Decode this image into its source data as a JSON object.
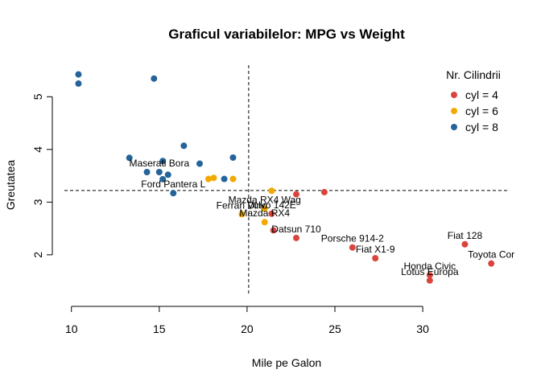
{
  "chart_data": {
    "type": "scatter",
    "title": "Graficul variabilelor: MPG vs Weight",
    "xlabel": "Mile pe Galon",
    "ylabel": "Greutatea",
    "xlim": [
      9.6,
      34.9
    ],
    "ylim": [
      1.25,
      5.6
    ],
    "xticks": [
      10,
      15,
      20,
      25,
      30
    ],
    "yticks": [
      2,
      3,
      4,
      5
    ],
    "grid": false,
    "legend": {
      "title": "Nr. Cilindrii",
      "placement": "top-right",
      "entries": [
        {
          "label": "cyl = 4",
          "color": "#D9453D"
        },
        {
          "label": "cyl = 6",
          "color": "#F2A900"
        },
        {
          "label": "cyl = 8",
          "color": "#24649A"
        }
      ]
    },
    "reference_lines": {
      "vertical_x": 20.09,
      "horizontal_y": 3.22
    },
    "series": [
      {
        "name": "cyl = 4",
        "color": "#D9453D",
        "points": [
          {
            "x": 22.8,
            "y": 2.32
          },
          {
            "x": 24.4,
            "y": 3.19
          },
          {
            "x": 22.8,
            "y": 3.15
          },
          {
            "x": 32.4,
            "y": 2.2
          },
          {
            "x": 30.4,
            "y": 1.615
          },
          {
            "x": 33.9,
            "y": 1.835
          },
          {
            "x": 21.5,
            "y": 2.465
          },
          {
            "x": 27.3,
            "y": 1.935
          },
          {
            "x": 26.0,
            "y": 2.14
          },
          {
            "x": 30.4,
            "y": 1.513
          },
          {
            "x": 21.4,
            "y": 2.78
          }
        ]
      },
      {
        "name": "cyl = 6",
        "color": "#F2A900",
        "points": [
          {
            "x": 21.0,
            "y": 2.62
          },
          {
            "x": 21.0,
            "y": 2.875
          },
          {
            "x": 21.4,
            "y": 3.215
          },
          {
            "x": 18.1,
            "y": 3.46
          },
          {
            "x": 19.2,
            "y": 3.44
          },
          {
            "x": 17.8,
            "y": 3.44
          },
          {
            "x": 19.7,
            "y": 2.77
          }
        ]
      },
      {
        "name": "cyl = 8",
        "color": "#24649A",
        "points": [
          {
            "x": 18.7,
            "y": 3.44
          },
          {
            "x": 14.3,
            "y": 3.57
          },
          {
            "x": 16.4,
            "y": 4.07
          },
          {
            "x": 17.3,
            "y": 3.73
          },
          {
            "x": 15.2,
            "y": 3.78
          },
          {
            "x": 10.4,
            "y": 5.25
          },
          {
            "x": 10.4,
            "y": 5.424
          },
          {
            "x": 14.7,
            "y": 5.345
          },
          {
            "x": 15.5,
            "y": 3.52
          },
          {
            "x": 15.2,
            "y": 3.435
          },
          {
            "x": 13.3,
            "y": 3.84
          },
          {
            "x": 19.2,
            "y": 3.845
          },
          {
            "x": 15.8,
            "y": 3.17
          },
          {
            "x": 15.0,
            "y": 3.57
          }
        ]
      }
    ],
    "annotations": [
      {
        "text": "Maserati Bora",
        "x": 15.0,
        "y": 3.57
      },
      {
        "text": "Ford Pantera L",
        "x": 15.8,
        "y": 3.17
      },
      {
        "text": "Mazda RX4 Wag",
        "x": 21.0,
        "y": 2.875
      },
      {
        "text": "Ferrari Dino",
        "x": 19.7,
        "y": 2.77
      },
      {
        "text": "Volvo 142E",
        "x": 21.4,
        "y": 2.78
      },
      {
        "text": "Mazda RX4",
        "x": 21.0,
        "y": 2.62
      },
      {
        "text": "Datsun 710",
        "x": 22.8,
        "y": 2.32
      },
      {
        "text": "Porsche 914-2",
        "x": 26.0,
        "y": 2.14
      },
      {
        "text": "Fiat X1-9",
        "x": 27.3,
        "y": 1.935
      },
      {
        "text": "Fiat 128",
        "x": 32.4,
        "y": 2.2
      },
      {
        "text": "Toyota Cor",
        "x": 33.9,
        "y": 1.835
      },
      {
        "text": "Honda Civic",
        "x": 30.4,
        "y": 1.615
      },
      {
        "text": "Lotus Europa",
        "x": 30.4,
        "y": 1.513
      }
    ]
  }
}
